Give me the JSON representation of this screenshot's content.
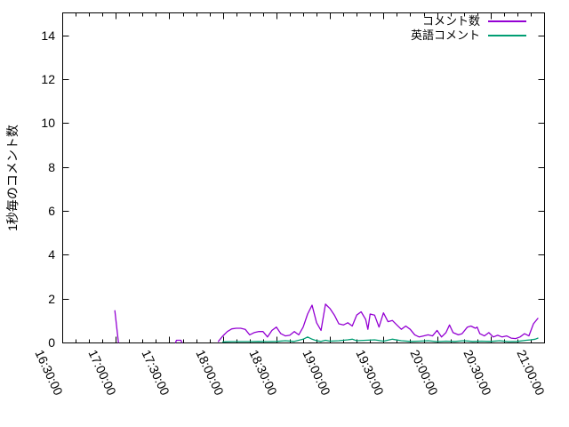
{
  "figure": {
    "background_color": "#ffffff",
    "axis_color": "#000000",
    "text_color": "#000000"
  },
  "chart_data": {
    "type": "line",
    "title": "",
    "xlabel": "",
    "ylabel": "1秒毎のコメント数",
    "x_range": [
      "16:30:00",
      "21:00:00"
    ],
    "ylim": [
      0,
      15
    ],
    "y_major_ticks": [
      0,
      2,
      4,
      6,
      8,
      10,
      12,
      14
    ],
    "x_major_ticks": [
      "16:30:00",
      "17:00:00",
      "17:30:00",
      "18:00:00",
      "18:30:00",
      "19:00:00",
      "19:30:00",
      "20:00:00",
      "20:30:00",
      "21:00:00"
    ],
    "x_minor_tick_interval_seconds": 450,
    "grid": false,
    "legend_position": "top-right-inside",
    "series": [
      {
        "name": "コメント数",
        "color": "#9400d3",
        "segments": [
          [
            [
              "16:59:30",
              1.45
            ],
            [
              "17:01:30",
              0
            ]
          ],
          [
            [
              "17:33:30",
              0
            ],
            [
              "17:34:00",
              0.1
            ],
            [
              "17:36:30",
              0.1
            ],
            [
              "17:37:00",
              0
            ]
          ],
          [
            [
              "17:57:30",
              0.05
            ],
            [
              "18:00:00",
              0.3
            ],
            [
              "18:02:30",
              0.5
            ],
            [
              "18:05:00",
              0.62
            ],
            [
              "18:07:30",
              0.65
            ],
            [
              "18:10:00",
              0.65
            ],
            [
              "18:12:30",
              0.6
            ],
            [
              "18:15:00",
              0.35
            ],
            [
              "18:17:30",
              0.45
            ],
            [
              "18:20:00",
              0.5
            ],
            [
              "18:22:30",
              0.5
            ],
            [
              "18:25:00",
              0.25
            ],
            [
              "18:27:30",
              0.55
            ],
            [
              "18:30:00",
              0.7
            ],
            [
              "18:32:30",
              0.4
            ],
            [
              "18:35:00",
              0.3
            ],
            [
              "18:37:30",
              0.33
            ],
            [
              "18:40:00",
              0.5
            ],
            [
              "18:42:30",
              0.35
            ],
            [
              "18:45:00",
              0.7
            ],
            [
              "18:47:30",
              1.3
            ],
            [
              "18:50:00",
              1.7
            ],
            [
              "18:52:30",
              0.9
            ],
            [
              "18:55:00",
              0.55
            ],
            [
              "18:57:30",
              1.75
            ],
            [
              "19:00:00",
              1.55
            ],
            [
              "19:02:30",
              1.25
            ],
            [
              "19:05:00",
              0.85
            ],
            [
              "19:07:30",
              0.8
            ],
            [
              "19:10:00",
              0.9
            ],
            [
              "19:12:30",
              0.75
            ],
            [
              "19:15:00",
              1.25
            ],
            [
              "19:17:30",
              1.4
            ],
            [
              "19:20:00",
              1.05
            ],
            [
              "19:21:15",
              0.6
            ],
            [
              "19:22:30",
              1.3
            ],
            [
              "19:25:00",
              1.25
            ],
            [
              "19:27:30",
              0.7
            ],
            [
              "19:30:00",
              1.35
            ],
            [
              "19:32:30",
              0.95
            ],
            [
              "19:35:00",
              1.0
            ],
            [
              "19:37:30",
              0.8
            ],
            [
              "19:40:00",
              0.6
            ],
            [
              "19:42:30",
              0.75
            ],
            [
              "19:45:00",
              0.6
            ],
            [
              "19:47:30",
              0.35
            ],
            [
              "19:50:00",
              0.25
            ],
            [
              "19:52:30",
              0.3
            ],
            [
              "19:55:00",
              0.35
            ],
            [
              "19:57:30",
              0.3
            ],
            [
              "20:00:00",
              0.55
            ],
            [
              "20:02:30",
              0.25
            ],
            [
              "20:05:00",
              0.45
            ],
            [
              "20:07:00",
              0.8
            ],
            [
              "20:09:00",
              0.45
            ],
            [
              "20:12:00",
              0.35
            ],
            [
              "20:14:00",
              0.4
            ],
            [
              "20:17:00",
              0.7
            ],
            [
              "20:19:00",
              0.75
            ],
            [
              "20:21:30",
              0.65
            ],
            [
              "20:22:30",
              0.7
            ],
            [
              "20:24:00",
              0.4
            ],
            [
              "20:26:30",
              0.3
            ],
            [
              "20:29:00",
              0.45
            ],
            [
              "20:31:30",
              0.25
            ],
            [
              "20:34:00",
              0.33
            ],
            [
              "20:36:30",
              0.25
            ],
            [
              "20:39:00",
              0.3
            ],
            [
              "20:41:30",
              0.2
            ],
            [
              "20:44:00",
              0.18
            ],
            [
              "20:46:30",
              0.25
            ],
            [
              "20:49:00",
              0.4
            ],
            [
              "20:51:30",
              0.3
            ],
            [
              "20:54:00",
              0.85
            ],
            [
              "20:56:30",
              1.1
            ]
          ]
        ]
      },
      {
        "name": "英語コメント",
        "color": "#009e73",
        "segments": [
          [
            [
              "18:00:00",
              0.03
            ],
            [
              "18:05:00",
              0.04
            ],
            [
              "18:10:00",
              0.04
            ],
            [
              "18:15:00",
              0.04
            ],
            [
              "18:20:00",
              0.05
            ],
            [
              "18:25:00",
              0.04
            ],
            [
              "18:30:00",
              0.05
            ],
            [
              "18:35:00",
              0.08
            ],
            [
              "18:40:00",
              0.05
            ],
            [
              "18:45:00",
              0.15
            ],
            [
              "18:47:30",
              0.25
            ],
            [
              "18:50:00",
              0.15
            ],
            [
              "18:52:30",
              0.08
            ],
            [
              "18:55:00",
              0.05
            ],
            [
              "18:57:30",
              0.1
            ],
            [
              "19:00:00",
              0.06
            ],
            [
              "19:05:00",
              0.08
            ],
            [
              "19:10:00",
              0.12
            ],
            [
              "19:12:30",
              0.15
            ],
            [
              "19:15:00",
              0.08
            ],
            [
              "19:20:00",
              0.1
            ],
            [
              "19:25:00",
              0.12
            ],
            [
              "19:30:00",
              0.06
            ],
            [
              "19:35:00",
              0.15
            ],
            [
              "19:40:00",
              0.08
            ],
            [
              "19:45:00",
              0.05
            ],
            [
              "19:50:00",
              0.06
            ],
            [
              "19:55:00",
              0.08
            ],
            [
              "20:00:00",
              0.04
            ],
            [
              "20:05:00",
              0.06
            ],
            [
              "20:10:00",
              0.05
            ],
            [
              "20:15:00",
              0.08
            ],
            [
              "20:20:00",
              0.05
            ],
            [
              "20:25:00",
              0.06
            ],
            [
              "20:30:00",
              0.05
            ],
            [
              "20:35:00",
              0.08
            ],
            [
              "20:40:00",
              0.04
            ],
            [
              "20:45:00",
              0.05
            ],
            [
              "20:50:00",
              0.1
            ],
            [
              "20:52:30",
              0.12
            ],
            [
              "20:55:00",
              0.15
            ],
            [
              "20:56:30",
              0.2
            ]
          ]
        ]
      }
    ]
  }
}
